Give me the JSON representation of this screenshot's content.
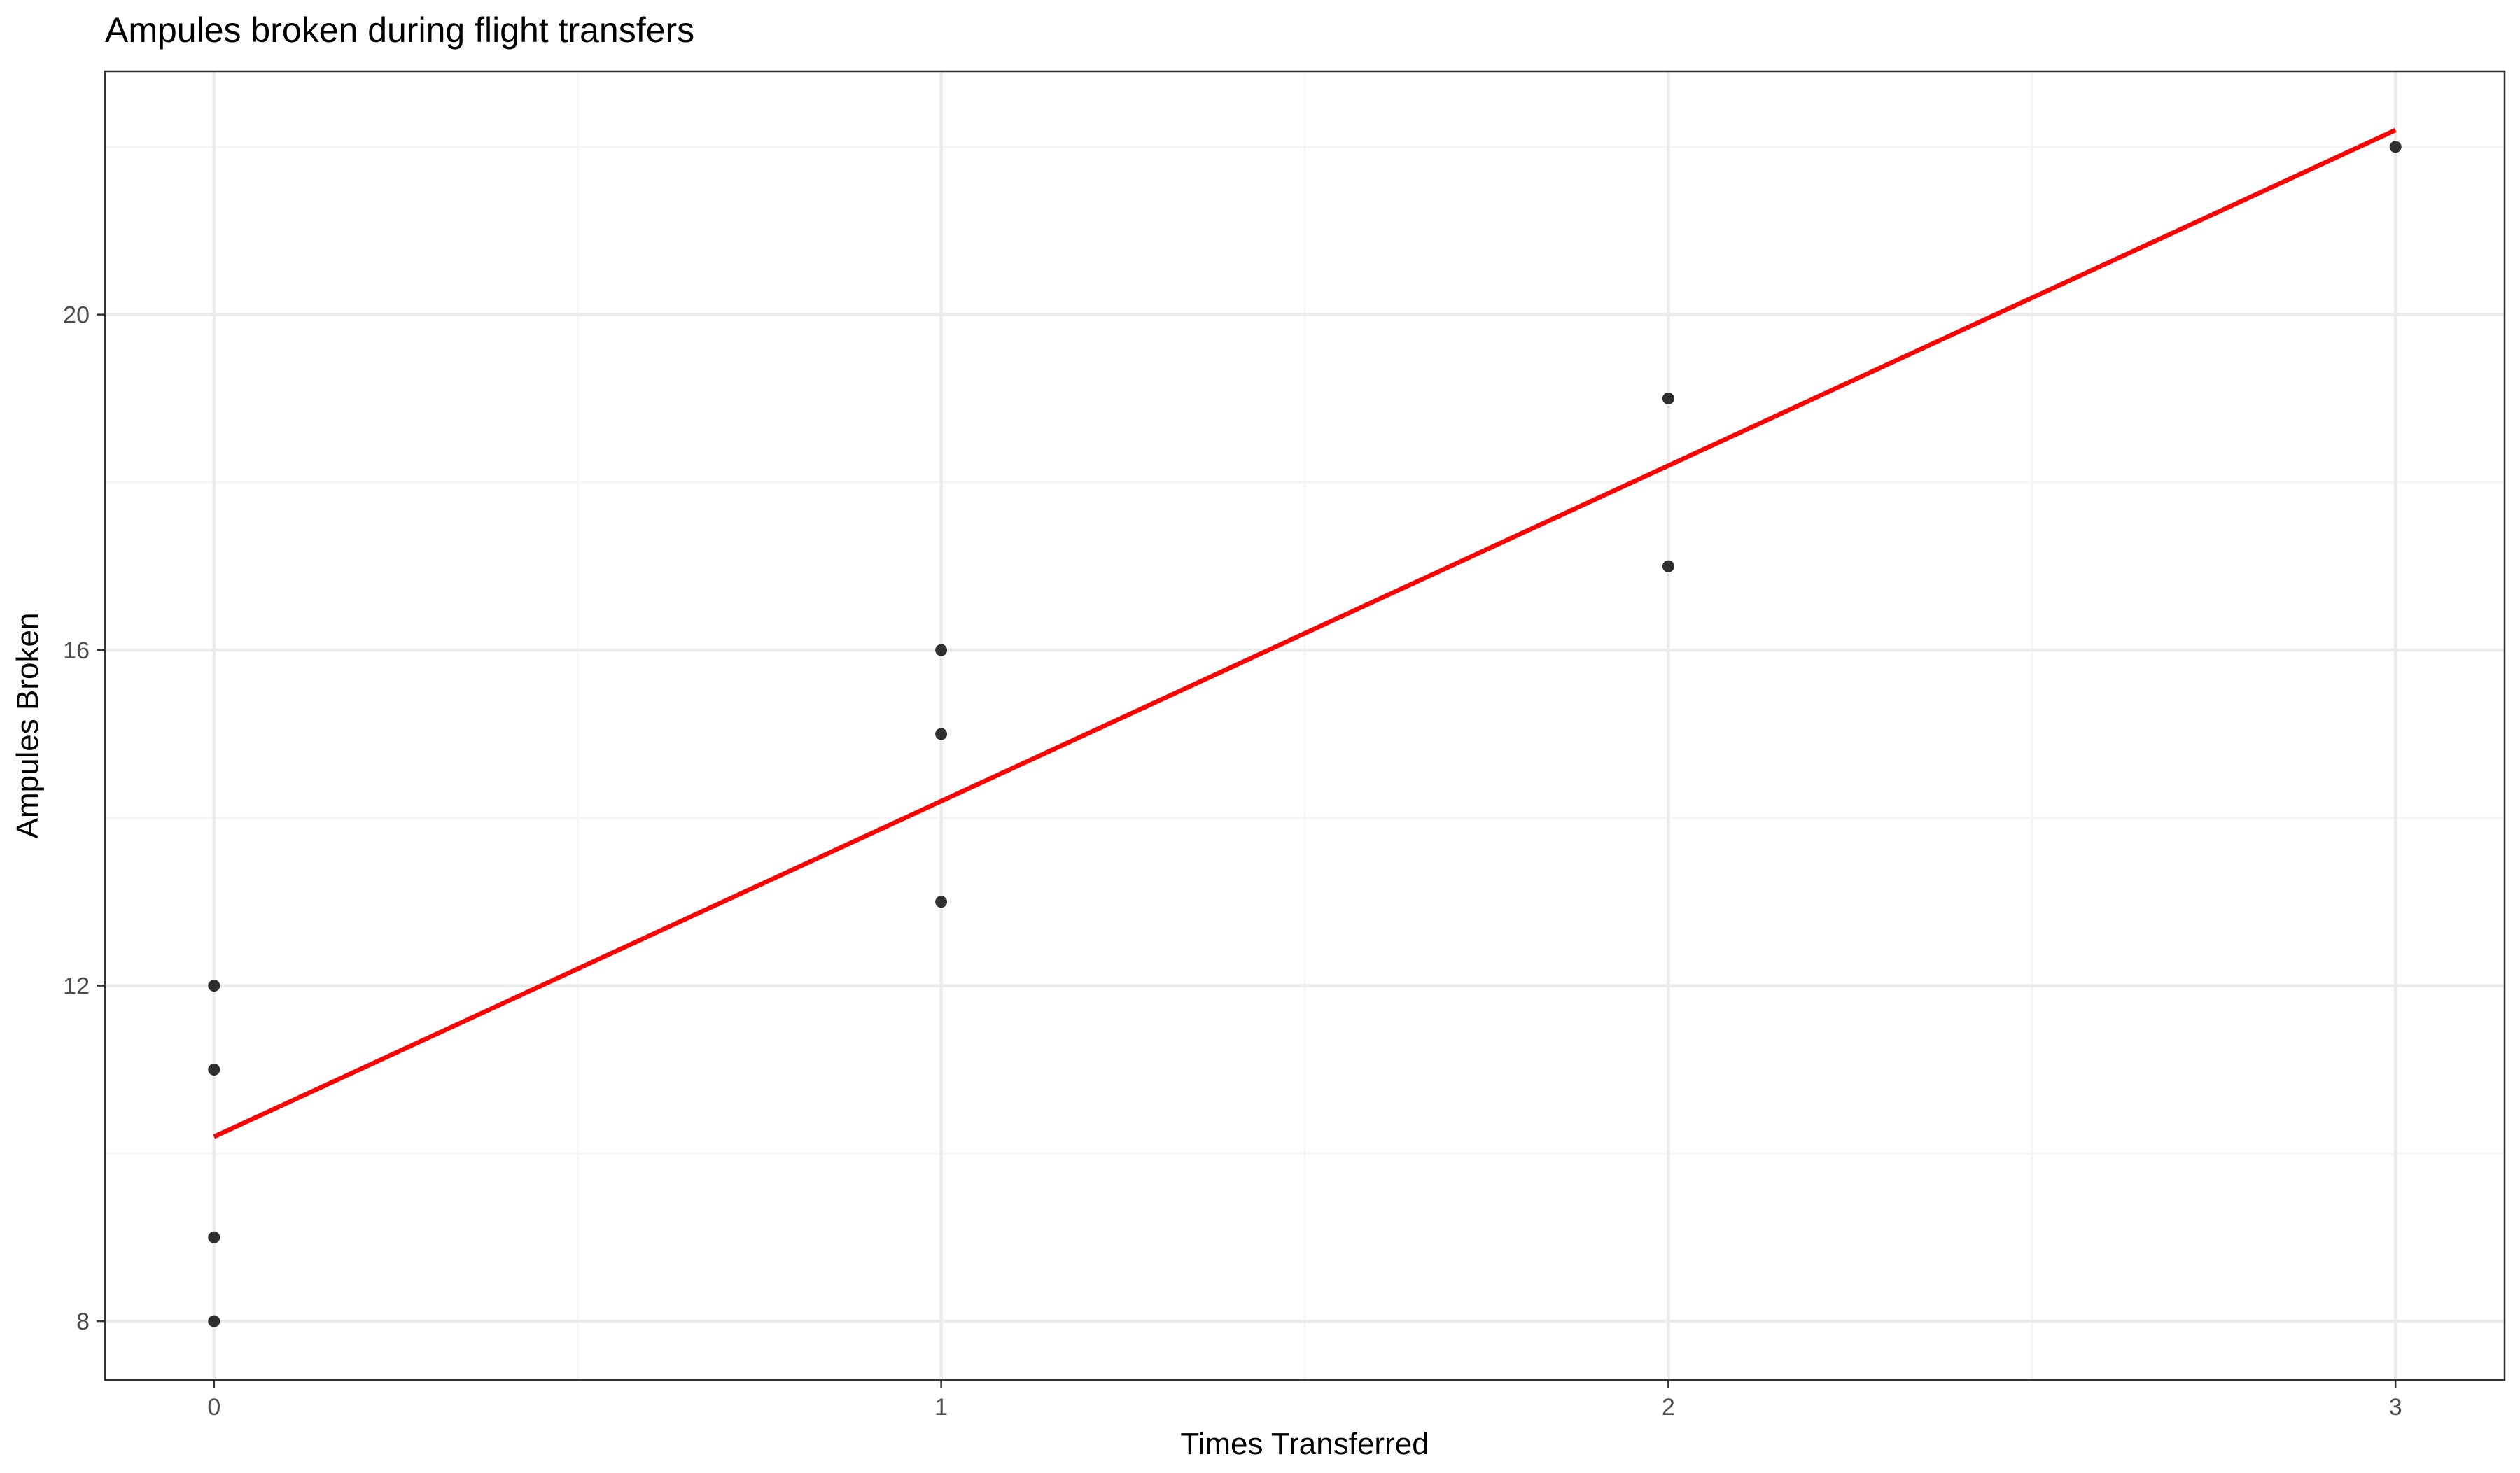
{
  "chart_data": {
    "type": "scatter",
    "title": "Ampules broken during flight transfers",
    "xlabel": "Times Transferred",
    "ylabel": "Ampules Broken",
    "xlim": [
      -0.15,
      3.15
    ],
    "ylim": [
      7.3,
      22.9
    ],
    "x_ticks": [
      {
        "value": 0,
        "label": "0"
      },
      {
        "value": 1,
        "label": "1"
      },
      {
        "value": 2,
        "label": "2"
      },
      {
        "value": 3,
        "label": "3"
      }
    ],
    "x_minor_ticks": [
      0.5,
      1.5,
      2.5
    ],
    "y_ticks": [
      {
        "value": 8,
        "label": "8"
      },
      {
        "value": 12,
        "label": "12"
      },
      {
        "value": 16,
        "label": "16"
      },
      {
        "value": 20,
        "label": "20"
      }
    ],
    "y_minor_ticks": [
      10,
      14,
      18,
      22
    ],
    "grid": true,
    "points": [
      {
        "x": 0,
        "y": 12
      },
      {
        "x": 0,
        "y": 11
      },
      {
        "x": 0,
        "y": 9
      },
      {
        "x": 0,
        "y": 8
      },
      {
        "x": 1,
        "y": 16
      },
      {
        "x": 1,
        "y": 15
      },
      {
        "x": 1,
        "y": 13
      },
      {
        "x": 2,
        "y": 19
      },
      {
        "x": 2,
        "y": 17
      },
      {
        "x": 3,
        "y": 22
      }
    ],
    "fit_line": {
      "method": "linear regression",
      "x_start": 0,
      "y_start": 10.2,
      "x_end": 3,
      "y_end": 22.2
    },
    "colors": {
      "points": "#1a1a1a",
      "fit_line": "#ff0000",
      "grid_major": "#ebebeb",
      "grid_minor": "#f5f5f5",
      "panel_border": "#333333",
      "tick_label": "#4d4d4d"
    }
  }
}
